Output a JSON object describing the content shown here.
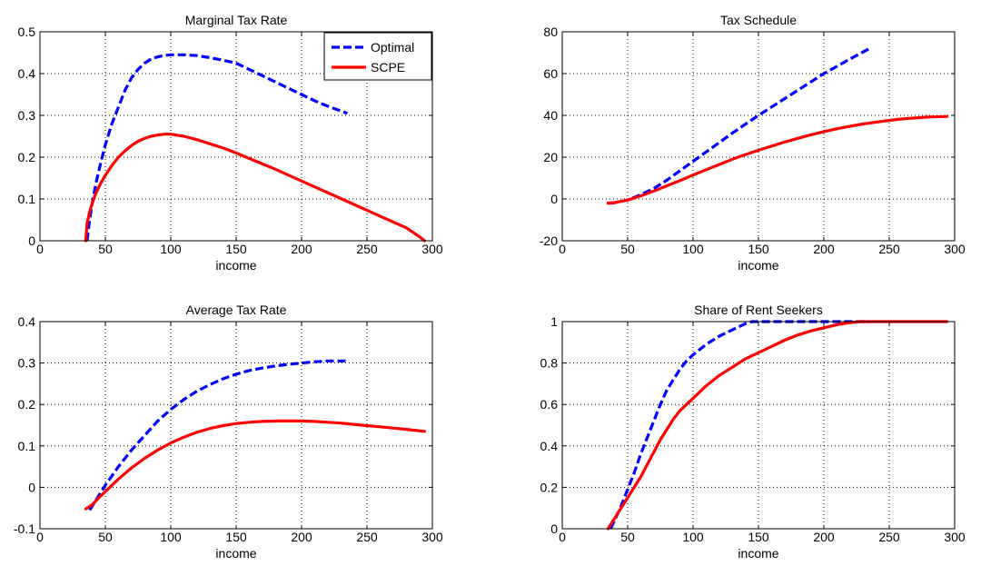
{
  "chart_data": [
    {
      "type": "line",
      "title": "Marginal Tax Rate",
      "xlabel": "income",
      "ylabel": "",
      "xlim": [
        0,
        300
      ],
      "ylim": [
        0,
        0.5
      ],
      "xticks": [
        0,
        50,
        100,
        150,
        200,
        250,
        300
      ],
      "yticks": [
        0,
        0.1,
        0.2,
        0.3,
        0.4,
        0.5
      ],
      "xtick_labels": [
        "0",
        "50",
        "100",
        "150",
        "200",
        "250",
        "300"
      ],
      "ytick_labels": [
        "0",
        "0.1",
        "0.2",
        "0.3",
        "0.4",
        "0.5"
      ],
      "grid": true,
      "legend": {
        "position": "top-right"
      },
      "series": [
        {
          "name": "Optimal",
          "color": "#0000ff",
          "style": "dashed",
          "x": [
            36,
            38,
            40,
            43,
            46,
            50,
            55,
            60,
            65,
            70,
            75,
            80,
            85,
            90,
            95,
            100,
            110,
            120,
            130,
            140,
            150,
            160,
            170,
            180,
            190,
            200,
            210,
            220,
            235
          ],
          "y": [
            0.0,
            0.05,
            0.09,
            0.14,
            0.18,
            0.23,
            0.28,
            0.32,
            0.36,
            0.39,
            0.41,
            0.425,
            0.435,
            0.44,
            0.443,
            0.445,
            0.445,
            0.443,
            0.438,
            0.432,
            0.425,
            0.41,
            0.395,
            0.38,
            0.365,
            0.35,
            0.335,
            0.322,
            0.305
          ]
        },
        {
          "name": "SCPE",
          "color": "#ff0000",
          "style": "solid",
          "x": [
            35,
            36,
            38,
            40,
            43,
            46,
            50,
            55,
            60,
            65,
            70,
            75,
            80,
            85,
            90,
            95,
            100,
            110,
            120,
            130,
            140,
            150,
            160,
            170,
            180,
            190,
            200,
            210,
            220,
            230,
            240,
            250,
            260,
            270,
            280,
            290,
            294
          ],
          "y": [
            0.0,
            0.04,
            0.07,
            0.09,
            0.115,
            0.135,
            0.157,
            0.18,
            0.2,
            0.215,
            0.228,
            0.238,
            0.245,
            0.25,
            0.253,
            0.255,
            0.255,
            0.25,
            0.242,
            0.232,
            0.222,
            0.21,
            0.197,
            0.184,
            0.171,
            0.157,
            0.143,
            0.129,
            0.115,
            0.101,
            0.087,
            0.073,
            0.059,
            0.045,
            0.031,
            0.01,
            0.0
          ]
        }
      ]
    },
    {
      "type": "line",
      "title": "Tax Schedule",
      "xlabel": "income",
      "ylabel": "",
      "xlim": [
        0,
        300
      ],
      "ylim": [
        -20,
        80
      ],
      "xticks": [
        0,
        50,
        100,
        150,
        200,
        250,
        300
      ],
      "yticks": [
        -20,
        0,
        20,
        40,
        60,
        80
      ],
      "xtick_labels": [
        "0",
        "50",
        "100",
        "150",
        "200",
        "250",
        "300"
      ],
      "ytick_labels": [
        "-20",
        "0",
        "20",
        "40",
        "60",
        "80"
      ],
      "grid": true,
      "series": [
        {
          "name": "Optimal",
          "color": "#0000ff",
          "style": "dashed",
          "x": [
            36,
            40,
            50,
            60,
            70,
            80,
            90,
            100,
            110,
            120,
            130,
            140,
            150,
            160,
            170,
            180,
            190,
            200,
            210,
            220,
            235
          ],
          "y": [
            -2,
            -1.8,
            -0.5,
            2,
            5,
            9,
            13.5,
            18,
            22.5,
            27,
            31.5,
            35.8,
            40,
            44,
            48,
            52,
            56,
            60,
            63.5,
            67,
            72
          ]
        },
        {
          "name": "SCPE",
          "color": "#ff0000",
          "style": "solid",
          "x": [
            35,
            40,
            50,
            60,
            70,
            80,
            90,
            100,
            110,
            120,
            130,
            140,
            150,
            160,
            170,
            180,
            190,
            200,
            210,
            220,
            230,
            240,
            250,
            260,
            270,
            280,
            294
          ],
          "y": [
            -2,
            -1.8,
            -0.5,
            1.5,
            3.8,
            6.3,
            8.8,
            11.5,
            14,
            16.5,
            19,
            21.2,
            23.3,
            25.3,
            27.2,
            29,
            30.7,
            32.2,
            33.6,
            34.8,
            35.9,
            36.8,
            37.6,
            38.3,
            38.8,
            39.2,
            39.5
          ]
        }
      ]
    },
    {
      "type": "line",
      "title": "Average Tax Rate",
      "xlabel": "income",
      "ylabel": "",
      "xlim": [
        0,
        300
      ],
      "ylim": [
        -0.1,
        0.4
      ],
      "xticks": [
        0,
        50,
        100,
        150,
        200,
        250,
        300
      ],
      "yticks": [
        -0.1,
        0,
        0.1,
        0.2,
        0.3,
        0.4
      ],
      "xtick_labels": [
        "0",
        "50",
        "100",
        "150",
        "200",
        "250",
        "300"
      ],
      "ytick_labels": [
        "-0.1",
        "0",
        "0.1",
        "0.2",
        "0.3",
        "0.4"
      ],
      "grid": true,
      "series": [
        {
          "name": "Optimal",
          "color": "#0000ff",
          "style": "dashed",
          "x": [
            38,
            40,
            45,
            50,
            60,
            70,
            80,
            90,
            100,
            110,
            120,
            130,
            140,
            150,
            160,
            170,
            180,
            190,
            200,
            210,
            220,
            235
          ],
          "y": [
            -0.055,
            -0.045,
            -0.02,
            0.005,
            0.05,
            0.09,
            0.125,
            0.16,
            0.188,
            0.212,
            0.232,
            0.248,
            0.262,
            0.273,
            0.282,
            0.288,
            0.293,
            0.297,
            0.3,
            0.303,
            0.305,
            0.305
          ]
        },
        {
          "name": "SCPE",
          "color": "#ff0000",
          "style": "solid",
          "x": [
            35,
            40,
            45,
            50,
            60,
            70,
            80,
            90,
            100,
            110,
            120,
            130,
            140,
            150,
            160,
            170,
            180,
            190,
            200,
            210,
            220,
            230,
            240,
            250,
            260,
            270,
            280,
            294
          ],
          "y": [
            -0.052,
            -0.042,
            -0.025,
            -0.01,
            0.02,
            0.047,
            0.07,
            0.09,
            0.107,
            0.121,
            0.133,
            0.142,
            0.149,
            0.154,
            0.157,
            0.159,
            0.16,
            0.16,
            0.16,
            0.159,
            0.157,
            0.155,
            0.152,
            0.149,
            0.146,
            0.143,
            0.14,
            0.135
          ]
        }
      ]
    },
    {
      "type": "line",
      "title": "Share of Rent Seekers",
      "xlabel": "income",
      "ylabel": "",
      "xlim": [
        0,
        300
      ],
      "ylim": [
        0,
        1
      ],
      "xticks": [
        0,
        50,
        100,
        150,
        200,
        250,
        300
      ],
      "yticks": [
        0,
        0.2,
        0.4,
        0.6,
        0.8,
        1
      ],
      "xtick_labels": [
        "0",
        "50",
        "100",
        "150",
        "200",
        "250",
        "300"
      ],
      "ytick_labels": [
        "0",
        "0.2",
        "0.4",
        "0.6",
        "0.8",
        "1"
      ],
      "grid": true,
      "series": [
        {
          "name": "Optimal",
          "color": "#0000ff",
          "style": "dashed",
          "x": [
            37,
            40,
            45,
            50,
            55,
            60,
            65,
            70,
            75,
            80,
            85,
            90,
            95,
            100,
            110,
            120,
            130,
            140,
            145,
            150,
            160,
            170,
            180,
            190,
            200,
            210,
            220,
            235
          ],
          "y": [
            0.0,
            0.04,
            0.11,
            0.19,
            0.27,
            0.36,
            0.44,
            0.52,
            0.6,
            0.67,
            0.72,
            0.77,
            0.81,
            0.84,
            0.89,
            0.93,
            0.96,
            0.99,
            1.0,
            1.0,
            1.0,
            1.0,
            1.0,
            1.0,
            1.0,
            1.0,
            1.0,
            1.0
          ]
        },
        {
          "name": "SCPE",
          "color": "#ff0000",
          "style": "solid",
          "x": [
            35,
            38,
            40,
            45,
            50,
            55,
            60,
            65,
            70,
            75,
            80,
            85,
            90,
            95,
            100,
            110,
            120,
            130,
            140,
            150,
            160,
            170,
            180,
            190,
            200,
            210,
            220,
            228,
            240,
            260,
            280,
            294
          ],
          "y": [
            0.0,
            0.03,
            0.05,
            0.1,
            0.15,
            0.2,
            0.25,
            0.31,
            0.37,
            0.43,
            0.48,
            0.53,
            0.57,
            0.6,
            0.63,
            0.69,
            0.74,
            0.78,
            0.82,
            0.85,
            0.88,
            0.91,
            0.935,
            0.955,
            0.97,
            0.985,
            0.995,
            1.0,
            1.0,
            1.0,
            1.0,
            1.0
          ]
        }
      ]
    }
  ]
}
